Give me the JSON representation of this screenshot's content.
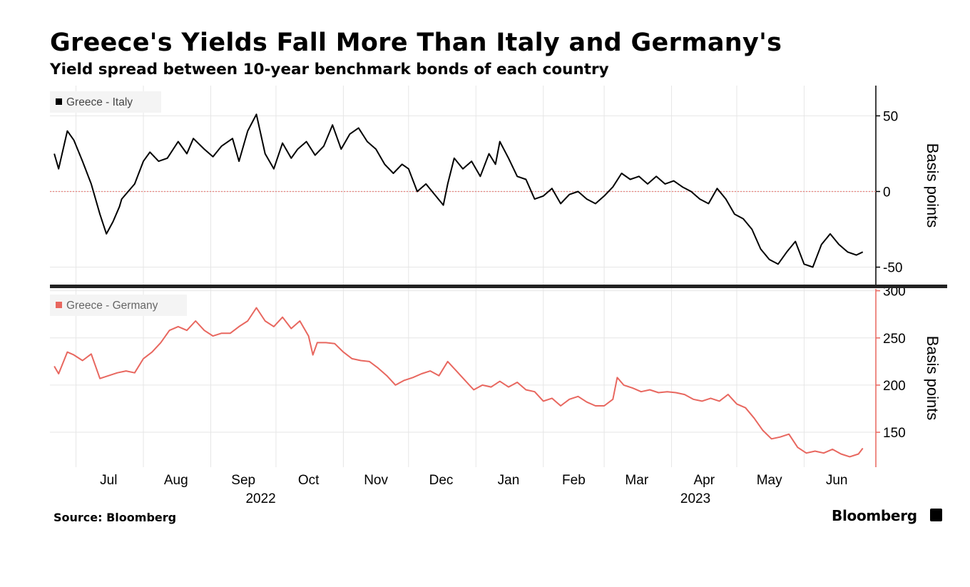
{
  "title": "Greece's Yields Fall More Than Italy and Germany's",
  "subtitle": "Yield spread between 10-year benchmark bonds of each country",
  "source": "Source: Bloomberg",
  "brand": "Bloomberg",
  "chart_data": [
    {
      "type": "line",
      "panel": "top",
      "series": [
        {
          "name": "Greece - Italy",
          "color": "#000000"
        }
      ],
      "legend_color": "#000000",
      "zero_line_color": "#e8837e",
      "ylabel": "Basis points",
      "ylim": [
        -62,
        70
      ],
      "yticks": [
        50,
        0,
        -50
      ],
      "ytick_labels": [
        "50",
        "0",
        "-50"
      ],
      "points": [
        [
          "2022-06-21",
          25
        ],
        [
          "2022-06-23",
          15
        ],
        [
          "2022-06-27",
          40
        ],
        [
          "2022-06-30",
          34
        ],
        [
          "2022-07-04",
          20
        ],
        [
          "2022-07-08",
          5
        ],
        [
          "2022-07-12",
          -15
        ],
        [
          "2022-07-15",
          -28
        ],
        [
          "2022-07-18",
          -20
        ],
        [
          "2022-07-21",
          -10
        ],
        [
          "2022-07-22",
          -5
        ],
        [
          "2022-07-25",
          0
        ],
        [
          "2022-07-28",
          5
        ],
        [
          "2022-08-01",
          20
        ],
        [
          "2022-08-04",
          26
        ],
        [
          "2022-08-08",
          20
        ],
        [
          "2022-08-12",
          22
        ],
        [
          "2022-08-17",
          33
        ],
        [
          "2022-08-21",
          25
        ],
        [
          "2022-08-24",
          35
        ],
        [
          "2022-08-29",
          28
        ],
        [
          "2022-09-02",
          23
        ],
        [
          "2022-09-06",
          30
        ],
        [
          "2022-09-11",
          35
        ],
        [
          "2022-09-14",
          20
        ],
        [
          "2022-09-18",
          40
        ],
        [
          "2022-09-22",
          51
        ],
        [
          "2022-09-26",
          25
        ],
        [
          "2022-09-30",
          15
        ],
        [
          "2022-10-04",
          32
        ],
        [
          "2022-10-08",
          22
        ],
        [
          "2022-10-11",
          28
        ],
        [
          "2022-10-15",
          33
        ],
        [
          "2022-10-19",
          24
        ],
        [
          "2022-10-23",
          30
        ],
        [
          "2022-10-27",
          44
        ],
        [
          "2022-10-31",
          28
        ],
        [
          "2022-11-04",
          38
        ],
        [
          "2022-11-08",
          42
        ],
        [
          "2022-11-12",
          33
        ],
        [
          "2022-11-16",
          28
        ],
        [
          "2022-11-20",
          18
        ],
        [
          "2022-11-24",
          12
        ],
        [
          "2022-11-28",
          18
        ],
        [
          "2022-12-01",
          15
        ],
        [
          "2022-12-05",
          0
        ],
        [
          "2022-12-09",
          5
        ],
        [
          "2022-12-13",
          -2
        ],
        [
          "2022-12-17",
          -9
        ],
        [
          "2022-12-19",
          5
        ],
        [
          "2022-12-22",
          22
        ],
        [
          "2022-12-26",
          15
        ],
        [
          "2022-12-30",
          20
        ],
        [
          "2023-01-03",
          10
        ],
        [
          "2023-01-07",
          25
        ],
        [
          "2023-01-10",
          18
        ],
        [
          "2023-01-12",
          33
        ],
        [
          "2023-01-16",
          22
        ],
        [
          "2023-01-20",
          10
        ],
        [
          "2023-01-24",
          8
        ],
        [
          "2023-01-28",
          -5
        ],
        [
          "2023-02-01",
          -3
        ],
        [
          "2023-02-05",
          2
        ],
        [
          "2023-02-09",
          -8
        ],
        [
          "2023-02-13",
          -2
        ],
        [
          "2023-02-17",
          0
        ],
        [
          "2023-02-21",
          -5
        ],
        [
          "2023-02-25",
          -8
        ],
        [
          "2023-03-01",
          -3
        ],
        [
          "2023-03-05",
          3
        ],
        [
          "2023-03-09",
          12
        ],
        [
          "2023-03-13",
          8
        ],
        [
          "2023-03-17",
          10
        ],
        [
          "2023-03-21",
          5
        ],
        [
          "2023-03-25",
          10
        ],
        [
          "2023-03-29",
          5
        ],
        [
          "2023-04-02",
          7
        ],
        [
          "2023-04-06",
          3
        ],
        [
          "2023-04-10",
          0
        ],
        [
          "2023-04-14",
          -5
        ],
        [
          "2023-04-18",
          -8
        ],
        [
          "2023-04-22",
          2
        ],
        [
          "2023-04-26",
          -5
        ],
        [
          "2023-04-30",
          -15
        ],
        [
          "2023-05-04",
          -18
        ],
        [
          "2023-05-08",
          -25
        ],
        [
          "2023-05-12",
          -38
        ],
        [
          "2023-05-16",
          -45
        ],
        [
          "2023-05-20",
          -48
        ],
        [
          "2023-05-24",
          -40
        ],
        [
          "2023-05-28",
          -33
        ],
        [
          "2023-06-01",
          -48
        ],
        [
          "2023-06-05",
          -50
        ],
        [
          "2023-06-09",
          -35
        ],
        [
          "2023-06-13",
          -28
        ],
        [
          "2023-06-17",
          -35
        ],
        [
          "2023-06-21",
          -40
        ],
        [
          "2023-06-25",
          -42
        ],
        [
          "2023-06-28",
          -40
        ]
      ]
    },
    {
      "type": "line",
      "panel": "bottom",
      "series": [
        {
          "name": "Greece - Germany",
          "color": "#e8675f"
        }
      ],
      "legend_color": "#e8675f",
      "axis_color": "#e8675f",
      "ylabel": "Basis points",
      "ylim": [
        113,
        302
      ],
      "yticks": [
        300,
        250,
        200,
        150
      ],
      "ytick_labels": [
        "300",
        "250",
        "200",
        "150"
      ],
      "points": [
        [
          "2022-06-21",
          220
        ],
        [
          "2022-06-23",
          212
        ],
        [
          "2022-06-27",
          235
        ],
        [
          "2022-06-30",
          232
        ],
        [
          "2022-07-04",
          226
        ],
        [
          "2022-07-08",
          233
        ],
        [
          "2022-07-12",
          207
        ],
        [
          "2022-07-16",
          210
        ],
        [
          "2022-07-20",
          213
        ],
        [
          "2022-07-24",
          215
        ],
        [
          "2022-07-28",
          213
        ],
        [
          "2022-08-01",
          228
        ],
        [
          "2022-08-05",
          235
        ],
        [
          "2022-08-09",
          245
        ],
        [
          "2022-08-13",
          258
        ],
        [
          "2022-08-17",
          262
        ],
        [
          "2022-08-21",
          258
        ],
        [
          "2022-08-25",
          268
        ],
        [
          "2022-08-29",
          258
        ],
        [
          "2022-09-02",
          252
        ],
        [
          "2022-09-06",
          255
        ],
        [
          "2022-09-10",
          255
        ],
        [
          "2022-09-14",
          262
        ],
        [
          "2022-09-18",
          268
        ],
        [
          "2022-09-22",
          282
        ],
        [
          "2022-09-26",
          268
        ],
        [
          "2022-09-30",
          262
        ],
        [
          "2022-10-04",
          272
        ],
        [
          "2022-10-08",
          260
        ],
        [
          "2022-10-12",
          268
        ],
        [
          "2022-10-16",
          252
        ],
        [
          "2022-10-18",
          232
        ],
        [
          "2022-10-20",
          245
        ],
        [
          "2022-10-24",
          245
        ],
        [
          "2022-10-28",
          244
        ],
        [
          "2022-11-01",
          235
        ],
        [
          "2022-11-05",
          228
        ],
        [
          "2022-11-09",
          226
        ],
        [
          "2022-11-13",
          225
        ],
        [
          "2022-11-17",
          218
        ],
        [
          "2022-11-21",
          210
        ],
        [
          "2022-11-25",
          200
        ],
        [
          "2022-11-29",
          205
        ],
        [
          "2022-12-03",
          208
        ],
        [
          "2022-12-07",
          212
        ],
        [
          "2022-12-11",
          215
        ],
        [
          "2022-12-15",
          210
        ],
        [
          "2022-12-19",
          225
        ],
        [
          "2022-12-23",
          215
        ],
        [
          "2022-12-27",
          205
        ],
        [
          "2022-12-31",
          195
        ],
        [
          "2023-01-04",
          200
        ],
        [
          "2023-01-08",
          198
        ],
        [
          "2023-01-12",
          204
        ],
        [
          "2023-01-16",
          198
        ],
        [
          "2023-01-20",
          203
        ],
        [
          "2023-01-24",
          195
        ],
        [
          "2023-01-28",
          193
        ],
        [
          "2023-02-01",
          183
        ],
        [
          "2023-02-05",
          186
        ],
        [
          "2023-02-09",
          178
        ],
        [
          "2023-02-13",
          185
        ],
        [
          "2023-02-17",
          188
        ],
        [
          "2023-02-21",
          182
        ],
        [
          "2023-02-25",
          178
        ],
        [
          "2023-03-01",
          178
        ],
        [
          "2023-03-05",
          185
        ],
        [
          "2023-03-07",
          208
        ],
        [
          "2023-03-10",
          200
        ],
        [
          "2023-03-14",
          197
        ],
        [
          "2023-03-18",
          193
        ],
        [
          "2023-03-22",
          195
        ],
        [
          "2023-03-26",
          192
        ],
        [
          "2023-03-30",
          193
        ],
        [
          "2023-04-03",
          192
        ],
        [
          "2023-04-07",
          190
        ],
        [
          "2023-04-11",
          185
        ],
        [
          "2023-04-15",
          183
        ],
        [
          "2023-04-19",
          186
        ],
        [
          "2023-04-23",
          183
        ],
        [
          "2023-04-27",
          190
        ],
        [
          "2023-05-01",
          180
        ],
        [
          "2023-05-05",
          176
        ],
        [
          "2023-05-09",
          165
        ],
        [
          "2023-05-13",
          152
        ],
        [
          "2023-05-17",
          143
        ],
        [
          "2023-05-21",
          145
        ],
        [
          "2023-05-25",
          148
        ],
        [
          "2023-05-29",
          134
        ],
        [
          "2023-06-02",
          128
        ],
        [
          "2023-06-06",
          130
        ],
        [
          "2023-06-10",
          128
        ],
        [
          "2023-06-14",
          132
        ],
        [
          "2023-06-18",
          127
        ],
        [
          "2023-06-22",
          124
        ],
        [
          "2023-06-26",
          127
        ],
        [
          "2023-06-28",
          133
        ]
      ]
    }
  ],
  "x_axis": {
    "month_ticks": [
      {
        "label": "Jul",
        "date": "2022-07-16"
      },
      {
        "label": "Aug",
        "date": "2022-08-16"
      },
      {
        "label": "Sep",
        "date": "2022-09-16"
      },
      {
        "label": "Oct",
        "date": "2022-10-16"
      },
      {
        "label": "Nov",
        "date": "2022-11-16"
      },
      {
        "label": "Dec",
        "date": "2022-12-16"
      },
      {
        "label": "Jan",
        "date": "2023-01-16"
      },
      {
        "label": "Feb",
        "date": "2023-02-15"
      },
      {
        "label": "Mar",
        "date": "2023-03-16"
      },
      {
        "label": "Apr",
        "date": "2023-04-16"
      },
      {
        "label": "May",
        "date": "2023-05-16"
      },
      {
        "label": "Jun",
        "date": "2023-06-16"
      }
    ],
    "gridlines": [
      "2022-07-01",
      "2022-08-01",
      "2022-09-01",
      "2022-10-01",
      "2022-11-01",
      "2022-12-01",
      "2023-01-01",
      "2023-02-01",
      "2023-03-01",
      "2023-04-01",
      "2023-05-01",
      "2023-06-01"
    ],
    "year_labels": [
      {
        "label": "2022",
        "date": "2022-09-24"
      },
      {
        "label": "2023",
        "date": "2023-04-12"
      }
    ],
    "range": [
      "2022-06-19",
      "2023-07-04"
    ]
  },
  "grid": true,
  "legend_placement": "top-left"
}
